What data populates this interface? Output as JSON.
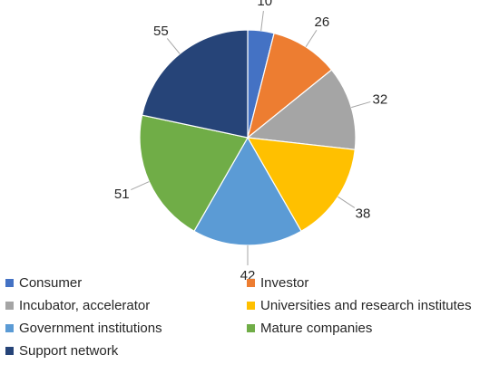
{
  "chart_data": {
    "type": "pie",
    "title": "",
    "categories": [
      "Consumer",
      "Investor",
      "Incubator, accelerator",
      "Universities and research institutes",
      "Government institutions",
      "Mature companies",
      "Support network"
    ],
    "values": [
      10,
      26,
      32,
      38,
      42,
      51,
      55
    ],
    "data_labels": [
      "10",
      "26",
      "32",
      "38",
      "42",
      "51",
      "55"
    ],
    "colors": [
      "#4472c4",
      "#ed7d31",
      "#a5a5a5",
      "#ffc000",
      "#5b9bd5",
      "#70ad47",
      "#264478"
    ],
    "start_angle_deg": 0,
    "direction": "clockwise",
    "legend_position": "bottom",
    "legend_columns": 2
  }
}
